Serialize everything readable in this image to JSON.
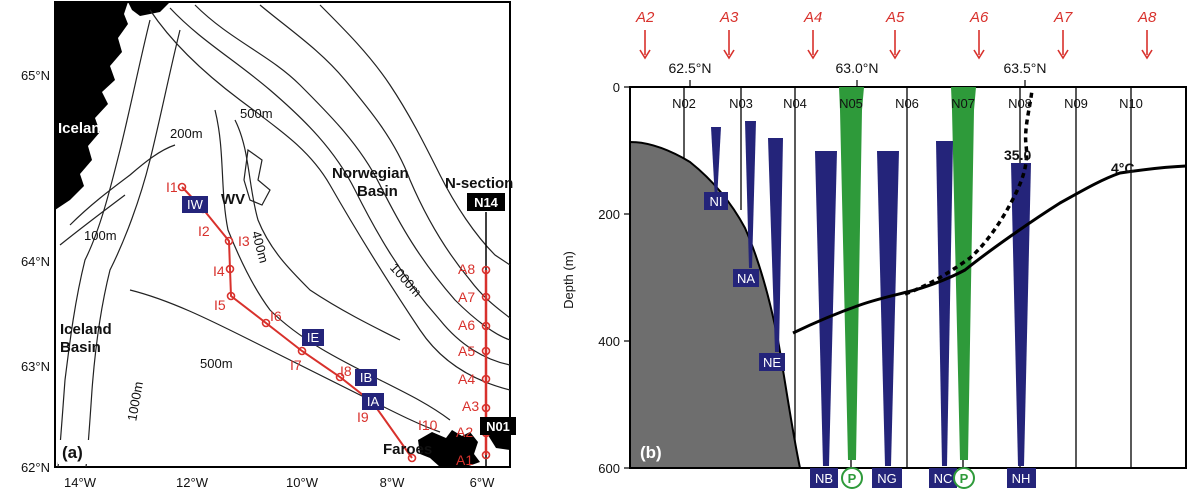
{
  "colors": {
    "route": "#d8312c",
    "mooring_blue": "#24247a",
    "mooring_green": "#2e9a3a",
    "land": "#000000",
    "seabed": "#6e6e6e",
    "contour": "#222222"
  },
  "map": {
    "panel_label": "(a)",
    "lat_ticks": [
      "65°N",
      "64°N",
      "63°N",
      "62°N"
    ],
    "lon_ticks": [
      "14°W",
      "12°W",
      "10°W",
      "8°W",
      "6°W"
    ],
    "places": {
      "iceland": "Iceland",
      "norwegian_basin": [
        "Norwegian",
        "Basin"
      ],
      "iceland_basin": [
        "Iceland",
        "Basin"
      ],
      "faroes": "Faroes",
      "wv": "WV",
      "n_section": "N-section"
    },
    "contours": {
      "c200": "200m",
      "c500a": "500m",
      "c100": "100m",
      "c400": "400m",
      "c1000a": "1000m",
      "c500b": "500m",
      "c1000b": "1000m"
    },
    "i_stations": [
      "I1",
      "I2",
      "I3",
      "I4",
      "I5",
      "I6",
      "I7",
      "I8",
      "I9",
      "I10"
    ],
    "a_stations": [
      "A1",
      "A2",
      "A3",
      "A4",
      "A5",
      "A6",
      "A7",
      "A8"
    ],
    "moorings": [
      "IW",
      "IE",
      "IB",
      "IA"
    ],
    "section_boxes": [
      "N14",
      "N01"
    ]
  },
  "section": {
    "panel_label": "(b)",
    "y_axis_label": "Depth (m)",
    "depth_ticks": [
      "0",
      "200",
      "400",
      "600"
    ],
    "lat_ticks": [
      "62.5°N",
      "63.0°N",
      "63.5°N"
    ],
    "stations": [
      "N02",
      "N03",
      "N04",
      "N05",
      "N06",
      "N07",
      "N08",
      "N09",
      "N10"
    ],
    "a_markers": [
      "A2",
      "A3",
      "A4",
      "A5",
      "A6",
      "A7",
      "A8"
    ],
    "moorings_left": [
      "NI",
      "NA",
      "NE"
    ],
    "moorings_bottom": [
      "NB",
      "NG",
      "NC",
      "NH"
    ],
    "p_marker": "P",
    "isotherm_label": "4°C",
    "isohaline_label": "35.0"
  }
}
